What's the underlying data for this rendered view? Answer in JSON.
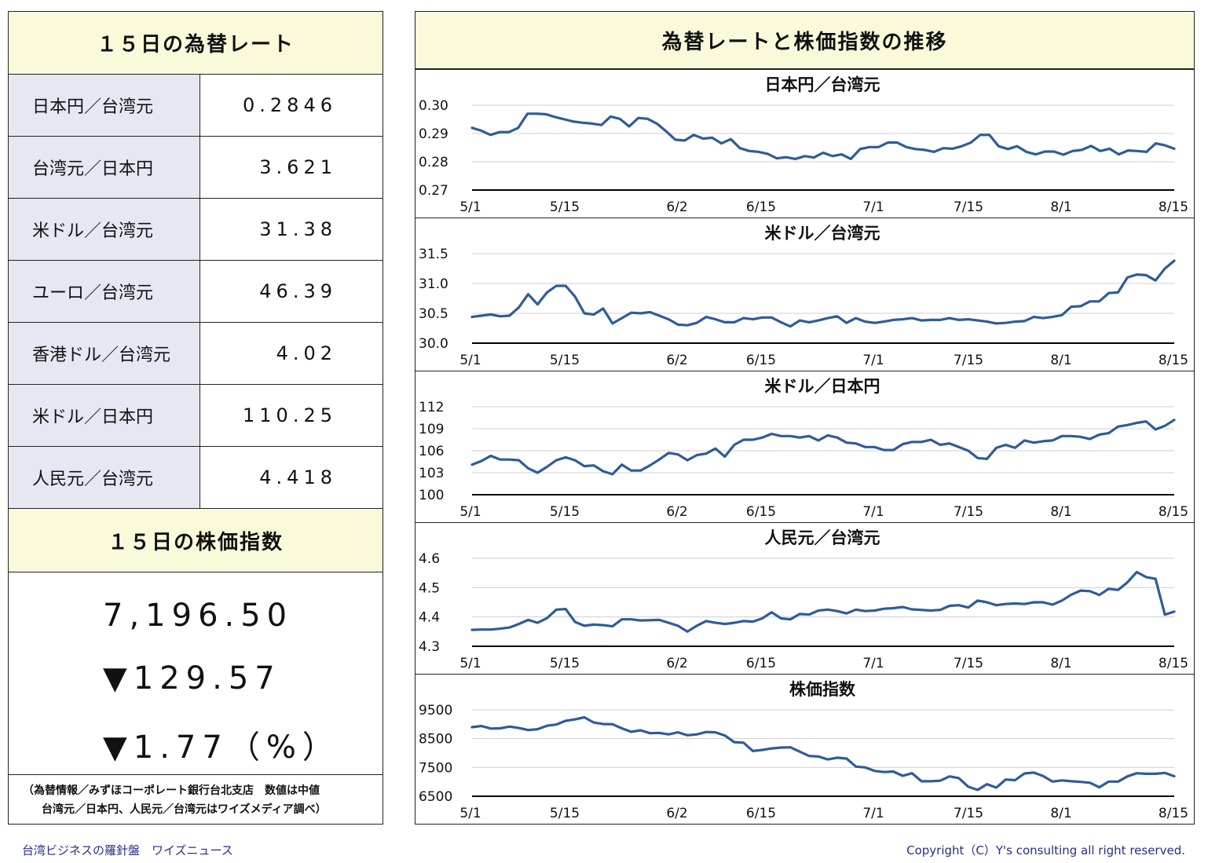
{
  "rates": {
    "title": "１５日の為替レート",
    "rows": [
      {
        "name": "日本円／台湾元",
        "value": "0.2846"
      },
      {
        "name": "台湾元／日本円",
        "value": "3.621"
      },
      {
        "name": "米ドル／台湾元",
        "value": "31.38"
      },
      {
        "name": "ユーロ／台湾元",
        "value": "46.39"
      },
      {
        "name": "香港ドル／台湾元",
        "value": "4.02"
      },
      {
        "name": "米ドル／日本円",
        "value": "110.25"
      },
      {
        "name": "人民元／台湾元",
        "value": "4.418"
      }
    ]
  },
  "stock": {
    "title": "１５日の株価指数",
    "value": "7,196.50",
    "change": "▼129.57",
    "change_pct": "▼1.77（%）"
  },
  "source": {
    "line1": "（為替情報／みずほコーポレート銀行台北支店　数値は中値",
    "line2": "台湾元／日本円、人民元／台湾元はワイズメディア調べ）"
  },
  "right_title": "為替レートと株価指数の推移",
  "footer": {
    "left": "台湾ビジネスの羅針盤　ワイズニュース",
    "right": "Copyright（C）Y's consulting all right reserved."
  },
  "chart_data": [
    {
      "type": "line",
      "title": "日本円／台湾元",
      "x_ticks": [
        "5/1",
        "5/15",
        "6/2",
        "6/15",
        "7/1",
        "7/15",
        "8/1",
        "8/15"
      ],
      "y_ticks": [
        "0.30",
        "0.29",
        "0.28",
        "0.27"
      ],
      "ylim": [
        0.27,
        0.3
      ],
      "color": "#2e5c9a",
      "values": [
        0.292,
        0.291,
        0.2895,
        0.2905,
        0.2905,
        0.292,
        0.297,
        0.297,
        0.2968,
        0.2958,
        0.295,
        0.2942,
        0.2938,
        0.2935,
        0.293,
        0.296,
        0.2952,
        0.2925,
        0.2955,
        0.2952,
        0.2935,
        0.2908,
        0.2878,
        0.2875,
        0.2895,
        0.2882,
        0.2885,
        0.2865,
        0.288,
        0.2848,
        0.2838,
        0.2835,
        0.2828,
        0.2812,
        0.2816,
        0.281,
        0.282,
        0.2815,
        0.2832,
        0.282,
        0.2826,
        0.281,
        0.2845,
        0.2852,
        0.2852,
        0.2868,
        0.2868,
        0.2852,
        0.2845,
        0.2842,
        0.2835,
        0.2848,
        0.2846,
        0.2855,
        0.2868,
        0.2895,
        0.2895,
        0.2855,
        0.2845,
        0.2855,
        0.2835,
        0.2826,
        0.2836,
        0.2836,
        0.2825,
        0.2838,
        0.2842,
        0.2856,
        0.2838,
        0.2846,
        0.2826,
        0.284,
        0.2838,
        0.2835,
        0.2865,
        0.2858,
        0.2846
      ]
    },
    {
      "type": "line",
      "title": "米ドル／台湾元",
      "x_ticks": [
        "5/1",
        "5/15",
        "6/2",
        "6/15",
        "7/1",
        "7/15",
        "8/1",
        "8/15"
      ],
      "y_ticks": [
        "31.5",
        "31.0",
        "30.5",
        "30.0"
      ],
      "ylim": [
        30.0,
        31.5
      ],
      "color": "#2e5c9a",
      "values": [
        30.44,
        30.46,
        30.48,
        30.45,
        30.46,
        30.6,
        30.82,
        30.65,
        30.85,
        30.96,
        30.96,
        30.78,
        30.5,
        30.48,
        30.58,
        30.33,
        30.42,
        30.51,
        30.5,
        30.52,
        30.46,
        30.4,
        30.31,
        30.3,
        30.34,
        30.44,
        30.4,
        30.35,
        30.35,
        30.42,
        30.4,
        30.43,
        30.43,
        30.35,
        30.28,
        30.38,
        30.35,
        30.38,
        30.42,
        30.45,
        30.34,
        30.42,
        30.36,
        30.34,
        30.36,
        30.39,
        30.4,
        30.42,
        30.38,
        30.39,
        30.39,
        30.42,
        30.39,
        30.4,
        30.38,
        30.36,
        30.33,
        30.34,
        30.36,
        30.37,
        30.44,
        30.42,
        30.44,
        30.47,
        30.61,
        30.62,
        30.7,
        30.7,
        30.84,
        30.85,
        31.1,
        31.15,
        31.14,
        31.05,
        31.25,
        31.38
      ]
    },
    {
      "type": "line",
      "title": "米ドル／日本円",
      "x_ticks": [
        "5/1",
        "5/15",
        "6/2",
        "6/15",
        "7/1",
        "7/15",
        "8/1",
        "8/15"
      ],
      "y_ticks": [
        "112",
        "109",
        "106",
        "103",
        "100"
      ],
      "ylim": [
        100,
        112
      ],
      "color": "#2e5c9a",
      "values": [
        104.1,
        104.6,
        105.3,
        104.8,
        104.8,
        104.7,
        103.6,
        103.0,
        103.8,
        104.7,
        105.1,
        104.7,
        103.9,
        104.0,
        103.2,
        102.8,
        104.1,
        103.3,
        103.3,
        104.0,
        104.8,
        105.7,
        105.5,
        104.7,
        105.4,
        105.6,
        106.3,
        105.2,
        106.8,
        107.5,
        107.5,
        107.8,
        108.3,
        108.0,
        108.0,
        107.8,
        108.0,
        107.4,
        108.1,
        107.8,
        107.1,
        107.0,
        106.5,
        106.5,
        106.1,
        106.1,
        106.9,
        107.2,
        107.2,
        107.5,
        106.8,
        107.0,
        106.5,
        106.0,
        105.0,
        104.9,
        106.4,
        106.8,
        106.4,
        107.4,
        107.1,
        107.3,
        107.4,
        108.0,
        108.0,
        107.9,
        107.6,
        108.2,
        108.4,
        109.3,
        109.5,
        109.8,
        110.0,
        108.9,
        109.4,
        110.2
      ]
    },
    {
      "type": "line",
      "title": "人民元／台湾元",
      "x_ticks": [
        "5/1",
        "5/15",
        "6/2",
        "6/15",
        "7/1",
        "7/15",
        "8/1",
        "8/15"
      ],
      "y_ticks": [
        "4.6",
        "4.5",
        "4.4",
        "4.3"
      ],
      "ylim": [
        4.3,
        4.6
      ],
      "color": "#2e5c9a",
      "values": [
        4.356,
        4.357,
        4.357,
        4.36,
        4.364,
        4.376,
        4.39,
        4.38,
        4.396,
        4.425,
        4.427,
        4.383,
        4.37,
        4.374,
        4.372,
        4.368,
        4.392,
        4.392,
        4.388,
        4.389,
        4.39,
        4.38,
        4.37,
        4.35,
        4.37,
        4.386,
        4.38,
        4.376,
        4.38,
        4.386,
        4.384,
        4.395,
        4.416,
        4.395,
        4.392,
        4.41,
        4.408,
        4.422,
        4.425,
        4.42,
        4.412,
        4.425,
        4.42,
        4.422,
        4.428,
        4.43,
        4.434,
        4.426,
        4.424,
        4.422,
        4.424,
        4.438,
        4.44,
        4.432,
        4.456,
        4.45,
        4.44,
        4.444,
        4.446,
        4.444,
        4.45,
        4.45,
        4.442,
        4.456,
        4.476,
        4.49,
        4.488,
        4.475,
        4.496,
        4.492,
        4.518,
        4.553,
        4.536,
        4.53,
        4.408,
        4.418
      ]
    },
    {
      "type": "line",
      "title": "株価指数",
      "x_ticks": [
        "5/1",
        "5/15",
        "6/2",
        "6/15",
        "7/1",
        "7/15",
        "8/1",
        "8/15"
      ],
      "y_ticks": [
        "9500",
        "8500",
        "7500",
        "6500"
      ],
      "ylim": [
        6500,
        9500
      ],
      "color": "#2e5c9a",
      "values": [
        8900,
        8940,
        8850,
        8860,
        8920,
        8870,
        8800,
        8830,
        8950,
        8990,
        9120,
        9170,
        9240,
        9060,
        9010,
        9000,
        8860,
        8740,
        8790,
        8690,
        8700,
        8650,
        8720,
        8620,
        8650,
        8730,
        8720,
        8610,
        8380,
        8360,
        8070,
        8110,
        8160,
        8190,
        8200,
        8050,
        7900,
        7880,
        7780,
        7840,
        7810,
        7530,
        7500,
        7380,
        7340,
        7360,
        7210,
        7300,
        7020,
        7020,
        7040,
        7190,
        7130,
        6830,
        6720,
        6920,
        6800,
        7080,
        7060,
        7290,
        7320,
        7200,
        7010,
        7050,
        7020,
        7000,
        6970,
        6810,
        7010,
        7010,
        7190,
        7300,
        7280,
        7280,
        7310,
        7196
      ]
    }
  ]
}
